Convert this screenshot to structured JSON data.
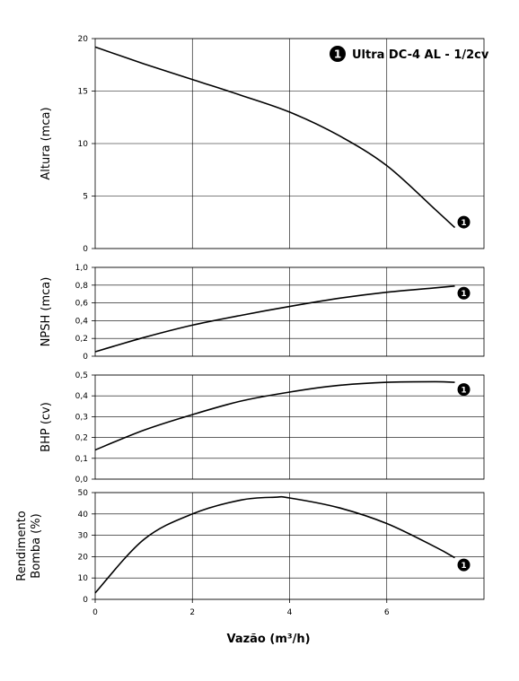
{
  "chart_data": [
    {
      "type": "line",
      "ylabel": "Altura (mca)",
      "ylim": [
        0,
        20
      ],
      "yticks": [
        "0",
        "5",
        "10",
        "15",
        "20"
      ],
      "xlim": [
        0,
        8
      ],
      "grid": true,
      "legend": {
        "badge": "1",
        "label": "Ultra DC-4 AL - 1/2cv",
        "placement": "top-right"
      },
      "series": [
        {
          "name": "1",
          "x": [
            0,
            1,
            2,
            3,
            4,
            5,
            6,
            7,
            7.4
          ],
          "y": [
            19.2,
            17.6,
            16.1,
            14.6,
            13.0,
            10.8,
            7.9,
            3.7,
            2.0
          ]
        }
      ]
    },
    {
      "type": "line",
      "ylabel": "NPSH (mca)",
      "ylim": [
        0,
        1.0
      ],
      "yticks": [
        "0",
        "0,2",
        "0,4",
        "0,6",
        "0,8",
        "1,0"
      ],
      "xlim": [
        0,
        8
      ],
      "grid": true,
      "series": [
        {
          "name": "1",
          "x": [
            0,
            1,
            2,
            3,
            4,
            5,
            6,
            7,
            7.4
          ],
          "y": [
            0.05,
            0.21,
            0.35,
            0.46,
            0.56,
            0.65,
            0.72,
            0.77,
            0.79
          ]
        }
      ]
    },
    {
      "type": "line",
      "ylabel": "BHP (cv)",
      "ylim": [
        0,
        0.5
      ],
      "yticks": [
        "0,0",
        "0,1",
        "0,2",
        "0,3",
        "0,4",
        "0,5"
      ],
      "xlim": [
        0,
        8
      ],
      "grid": true,
      "series": [
        {
          "name": "1",
          "x": [
            0,
            1,
            2,
            3,
            4,
            5,
            6,
            7,
            7.4
          ],
          "y": [
            0.14,
            0.235,
            0.31,
            0.375,
            0.418,
            0.45,
            0.465,
            0.468,
            0.465
          ]
        }
      ]
    },
    {
      "type": "line",
      "ylabel": "Rendimento Bomba (%)",
      "ylabel_lines": [
        "Rendimento",
        "Bomba (%)"
      ],
      "ylim": [
        0,
        50
      ],
      "yticks": [
        "0",
        "10",
        "20",
        "30",
        "40",
        "50"
      ],
      "xlim": [
        0,
        8
      ],
      "xticks": [
        "0",
        "2",
        "4",
        "6"
      ],
      "xlabel": "Vazão (m³/h)",
      "grid": true,
      "series": [
        {
          "name": "1",
          "x": [
            0,
            1,
            2,
            3,
            3.7,
            4,
            5,
            6,
            7,
            7.4
          ],
          "y": [
            3,
            28,
            40,
            46.5,
            47.8,
            47.5,
            43,
            35.5,
            24.5,
            19.5
          ]
        }
      ]
    }
  ]
}
